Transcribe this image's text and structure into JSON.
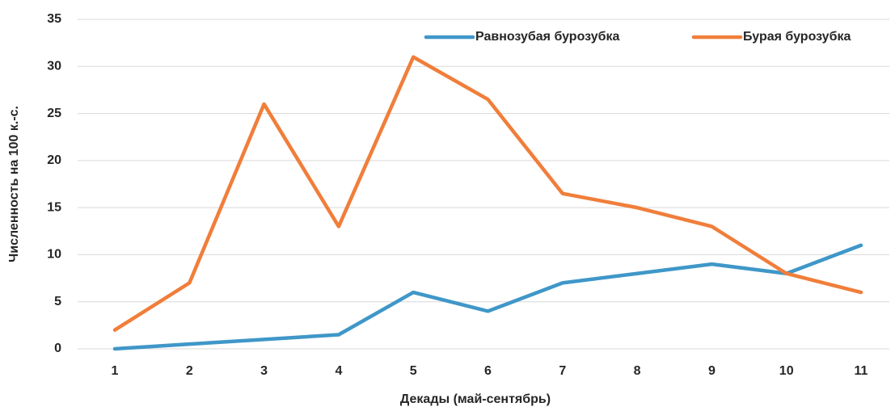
{
  "chart_data": {
    "type": "line",
    "x_label": "Декады (май-сентябрь)",
    "y_label": "Численность на 100 к.-с.",
    "categories": [
      "1",
      "2",
      "3",
      "4",
      "5",
      "6",
      "7",
      "8",
      "9",
      "10",
      "11"
    ],
    "series": [
      {
        "name": "Равнозубая бурозубка",
        "color": "#3f97c8",
        "values": [
          0,
          0.5,
          1,
          1.5,
          6,
          4,
          7,
          8,
          9,
          8,
          11
        ]
      },
      {
        "name": "Бурая бурозубка",
        "color": "#f07e3a",
        "values": [
          2,
          7,
          26,
          13,
          31,
          26.5,
          16.5,
          15,
          13,
          8,
          6
        ]
      }
    ],
    "ylim": [
      0,
      35
    ],
    "yticks": [
      0,
      5,
      10,
      15,
      20,
      25,
      30,
      35
    ],
    "grid": true,
    "legend": "top-right"
  }
}
